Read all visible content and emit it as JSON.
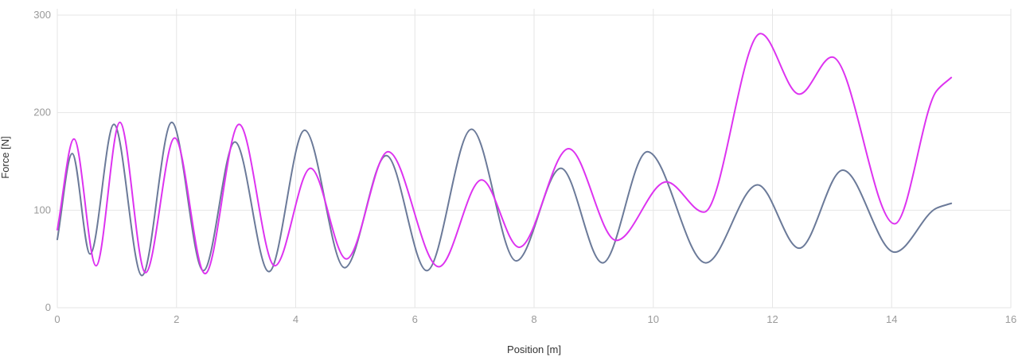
{
  "chart_data": {
    "type": "line",
    "title": "",
    "xlabel": "Position [m]",
    "ylabel": "Force [N]",
    "xlim": [
      0,
      16
    ],
    "ylim": [
      0,
      300
    ],
    "x_ticks": [
      0,
      2,
      4,
      6,
      8,
      10,
      12,
      14,
      16
    ],
    "y_ticks": [
      0,
      100,
      200,
      300
    ],
    "x_tick_labels": [
      "0",
      "2",
      "4",
      "6",
      "8",
      "10",
      "12",
      "14",
      "16"
    ],
    "y_tick_labels": [
      "0",
      "100",
      "200",
      "300"
    ],
    "grid": true,
    "legend": "none",
    "series": [
      {
        "color": "#6b7a99",
        "x": [
          0,
          0.25,
          0.55,
          0.95,
          1.42,
          1.92,
          2.45,
          2.98,
          3.55,
          4.15,
          4.82,
          5.52,
          6.2,
          6.95,
          7.7,
          8.45,
          9.15,
          9.9,
          10.88,
          11.75,
          12.45,
          13.18,
          14.05,
          14.75,
          15.0
        ],
        "y": [
          70,
          158,
          55,
          188,
          33,
          190,
          38,
          170,
          37,
          182,
          41,
          156,
          38,
          183,
          48,
          143,
          46,
          160,
          46,
          126,
          61,
          141,
          57,
          102,
          107
        ]
      },
      {
        "color": "#dd33f0",
        "x": [
          0,
          0.28,
          0.65,
          1.05,
          1.48,
          1.97,
          2.48,
          3.05,
          3.65,
          4.25,
          4.85,
          5.55,
          6.4,
          7.12,
          7.75,
          8.58,
          9.38,
          10.22,
          10.85,
          11.8,
          12.45,
          13.0,
          14.05,
          14.75,
          15.0
        ],
        "y": [
          80,
          173,
          43,
          190,
          36,
          174,
          35,
          188,
          43,
          143,
          50,
          160,
          42,
          131,
          62,
          163,
          69,
          129,
          98,
          281,
          219,
          257,
          86,
          222,
          236
        ]
      }
    ]
  }
}
